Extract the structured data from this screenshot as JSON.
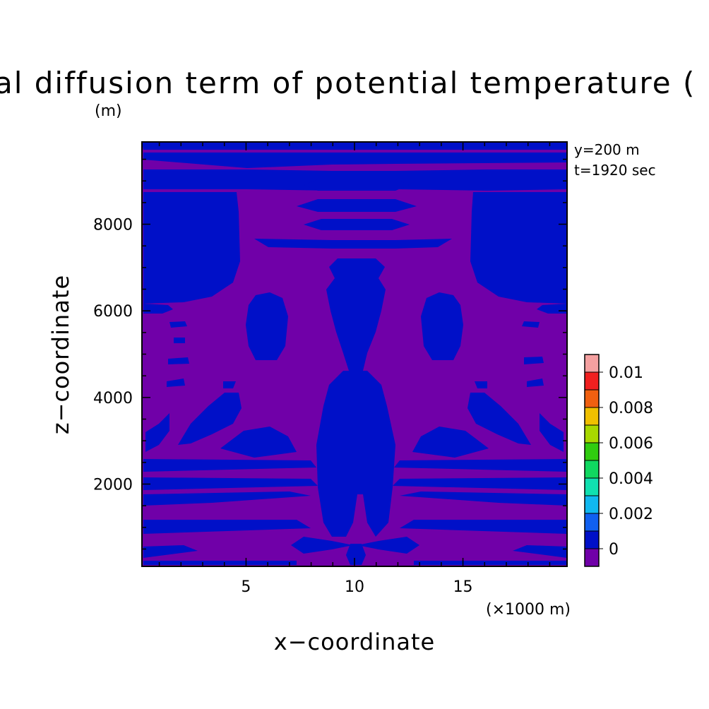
{
  "chart_data": {
    "type": "heatmap",
    "title": "al diffusion term of potential temperature (",
    "title_unit": "(m)",
    "xlabel": "x−coordinate",
    "ylabel": "z−coordinate",
    "x_unit": "(×1000 m)",
    "xlim": [
      0.2,
      19.8
    ],
    "ylim": [
      100,
      9900
    ],
    "x_ticks": [
      5,
      10,
      15
    ],
    "x_tick_labels": [
      "5",
      "10",
      "15"
    ],
    "y_ticks": [
      2000,
      4000,
      6000,
      8000
    ],
    "y_tick_labels": [
      "2000",
      "4000",
      "6000",
      "8000"
    ],
    "annotations": [
      "y=200 m",
      "t=1920 sec"
    ],
    "colorbar": {
      "tick_labels": [
        "0.01",
        "0.008",
        "0.006",
        "0.004",
        "0.002",
        "0"
      ],
      "levels": [
        "0.011",
        "0.010",
        "0.009",
        "0.008",
        "0.007",
        "0.006",
        "0.005",
        "0.004",
        "0.003",
        "0.002",
        "0.001",
        "0",
        "<0"
      ],
      "colors": [
        "#f4a0a0",
        "#f02020",
        "#f06010",
        "#f0c000",
        "#a8d800",
        "#30cc10",
        "#10d860",
        "#10e0b0",
        "#10b8f0",
        "#1060f0",
        "#0010c8",
        "#7000a8"
      ]
    },
    "dominant_values": {
      "background": "<0",
      "feature": "0"
    },
    "grid": false
  },
  "colors": {
    "negative_region": "#7000a8",
    "zero_region": "#0010c8"
  }
}
